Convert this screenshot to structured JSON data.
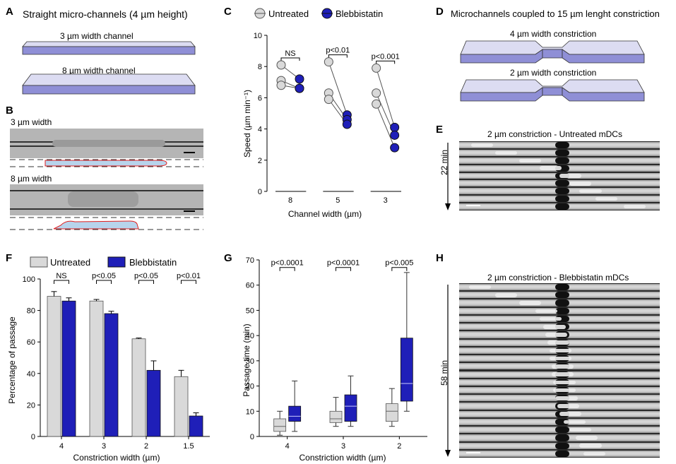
{
  "panels": {
    "A": "A",
    "B": "B",
    "C": "C",
    "D": "D",
    "E": "E",
    "F": "F",
    "G": "G",
    "H": "H"
  },
  "colors": {
    "untreated": "#d9d9d9",
    "blebbistatin": "#1f1fb8",
    "channel_top": "#dcdcf2",
    "channel_side": "#8f8fd6",
    "cell_fill": "#b7d4ec",
    "cell_outline": "#e02020"
  },
  "panelA": {
    "title": "Straight micro-channels (4 µm height)",
    "ch1": "3 µm width channel",
    "ch2": "8 µm width channel"
  },
  "panelB": {
    "label1": "3 µm width",
    "label2": "8 µm width"
  },
  "panelD": {
    "title": "Microchannels coupled to 15 µm lenght constriction",
    "c1": "4 µm width constriction",
    "c2": "2 µm width constriction"
  },
  "panelE": {
    "title": "2 µm constriction - Untreated mDCs",
    "time": "22 min"
  },
  "panelH": {
    "title": "2 µm constriction - Blebbistatin mDCs",
    "time": "58 min"
  },
  "chart_data": [
    {
      "id": "C",
      "type": "scatter",
      "title": "",
      "legend": [
        "Untreated",
        "Blebbistatin"
      ],
      "xlabel": "Channel width (µm)",
      "ylabel": "Speed (µm min⁻¹)",
      "ylim": [
        0,
        10
      ],
      "yticks": [
        "0",
        "2",
        "4",
        "6",
        "8",
        "10"
      ],
      "categories": [
        "8",
        "5",
        "3"
      ],
      "pvalues": [
        "NS",
        "p<0.01",
        "p<0.001"
      ],
      "pairs": [
        [
          [
            8.1,
            7.2
          ],
          [
            7.1,
            6.6
          ],
          [
            6.8,
            6.6
          ]
        ],
        [
          [
            8.3,
            4.9
          ],
          [
            6.3,
            4.6
          ],
          [
            5.9,
            4.3
          ]
        ],
        [
          [
            7.9,
            4.1
          ],
          [
            6.3,
            3.6
          ],
          [
            5.6,
            2.8
          ]
        ]
      ]
    },
    {
      "id": "F",
      "type": "bar",
      "legend": [
        "Untreated",
        "Blebbistatin"
      ],
      "xlabel": "Constriction width (µm)",
      "ylabel": "Percentage of passage",
      "ylim": [
        0,
        100
      ],
      "yticks": [
        "0",
        "20",
        "40",
        "60",
        "80",
        "100"
      ],
      "categories": [
        "4",
        "3",
        "2",
        "1.5"
      ],
      "pvalues": [
        "NS",
        "p<0.05",
        "p<0.05",
        "p<0.01"
      ],
      "series": [
        {
          "name": "Untreated",
          "values": [
            89,
            86,
            62,
            38
          ],
          "err": [
            3,
            1,
            0.5,
            4
          ]
        },
        {
          "name": "Blebbistatin",
          "values": [
            86,
            78,
            42,
            13
          ],
          "err": [
            2,
            1.5,
            6,
            2
          ]
        }
      ]
    },
    {
      "id": "G",
      "type": "box",
      "xlabel": "Constriction width (µm)",
      "ylabel": "Passage time (min)",
      "ylim": [
        0,
        70
      ],
      "yticks": [
        "0",
        "10",
        "20",
        "30",
        "40",
        "50",
        "60",
        "70"
      ],
      "categories": [
        "4",
        "3",
        "2"
      ],
      "pvalues": [
        "p<0.0001",
        "p<0.0001",
        "p<0.005"
      ],
      "series": [
        {
          "name": "Untreated",
          "boxes": [
            {
              "min": 0.5,
              "q1": 2,
              "median": 4,
              "q3": 7,
              "max": 10
            },
            {
              "min": 4,
              "q1": 5.5,
              "median": 7,
              "q3": 10,
              "max": 15.5
            },
            {
              "min": 4,
              "q1": 6,
              "median": 10,
              "q3": 13,
              "max": 19
            }
          ]
        },
        {
          "name": "Blebbistatin",
          "boxes": [
            {
              "min": 2,
              "q1": 6,
              "median": 8,
              "q3": 12,
              "max": 22
            },
            {
              "min": 4,
              "q1": 6,
              "median": 12,
              "q3": 16.5,
              "max": 24
            },
            {
              "min": 10,
              "q1": 14,
              "median": 21,
              "q3": 39,
              "max": 65
            }
          ]
        }
      ]
    }
  ]
}
